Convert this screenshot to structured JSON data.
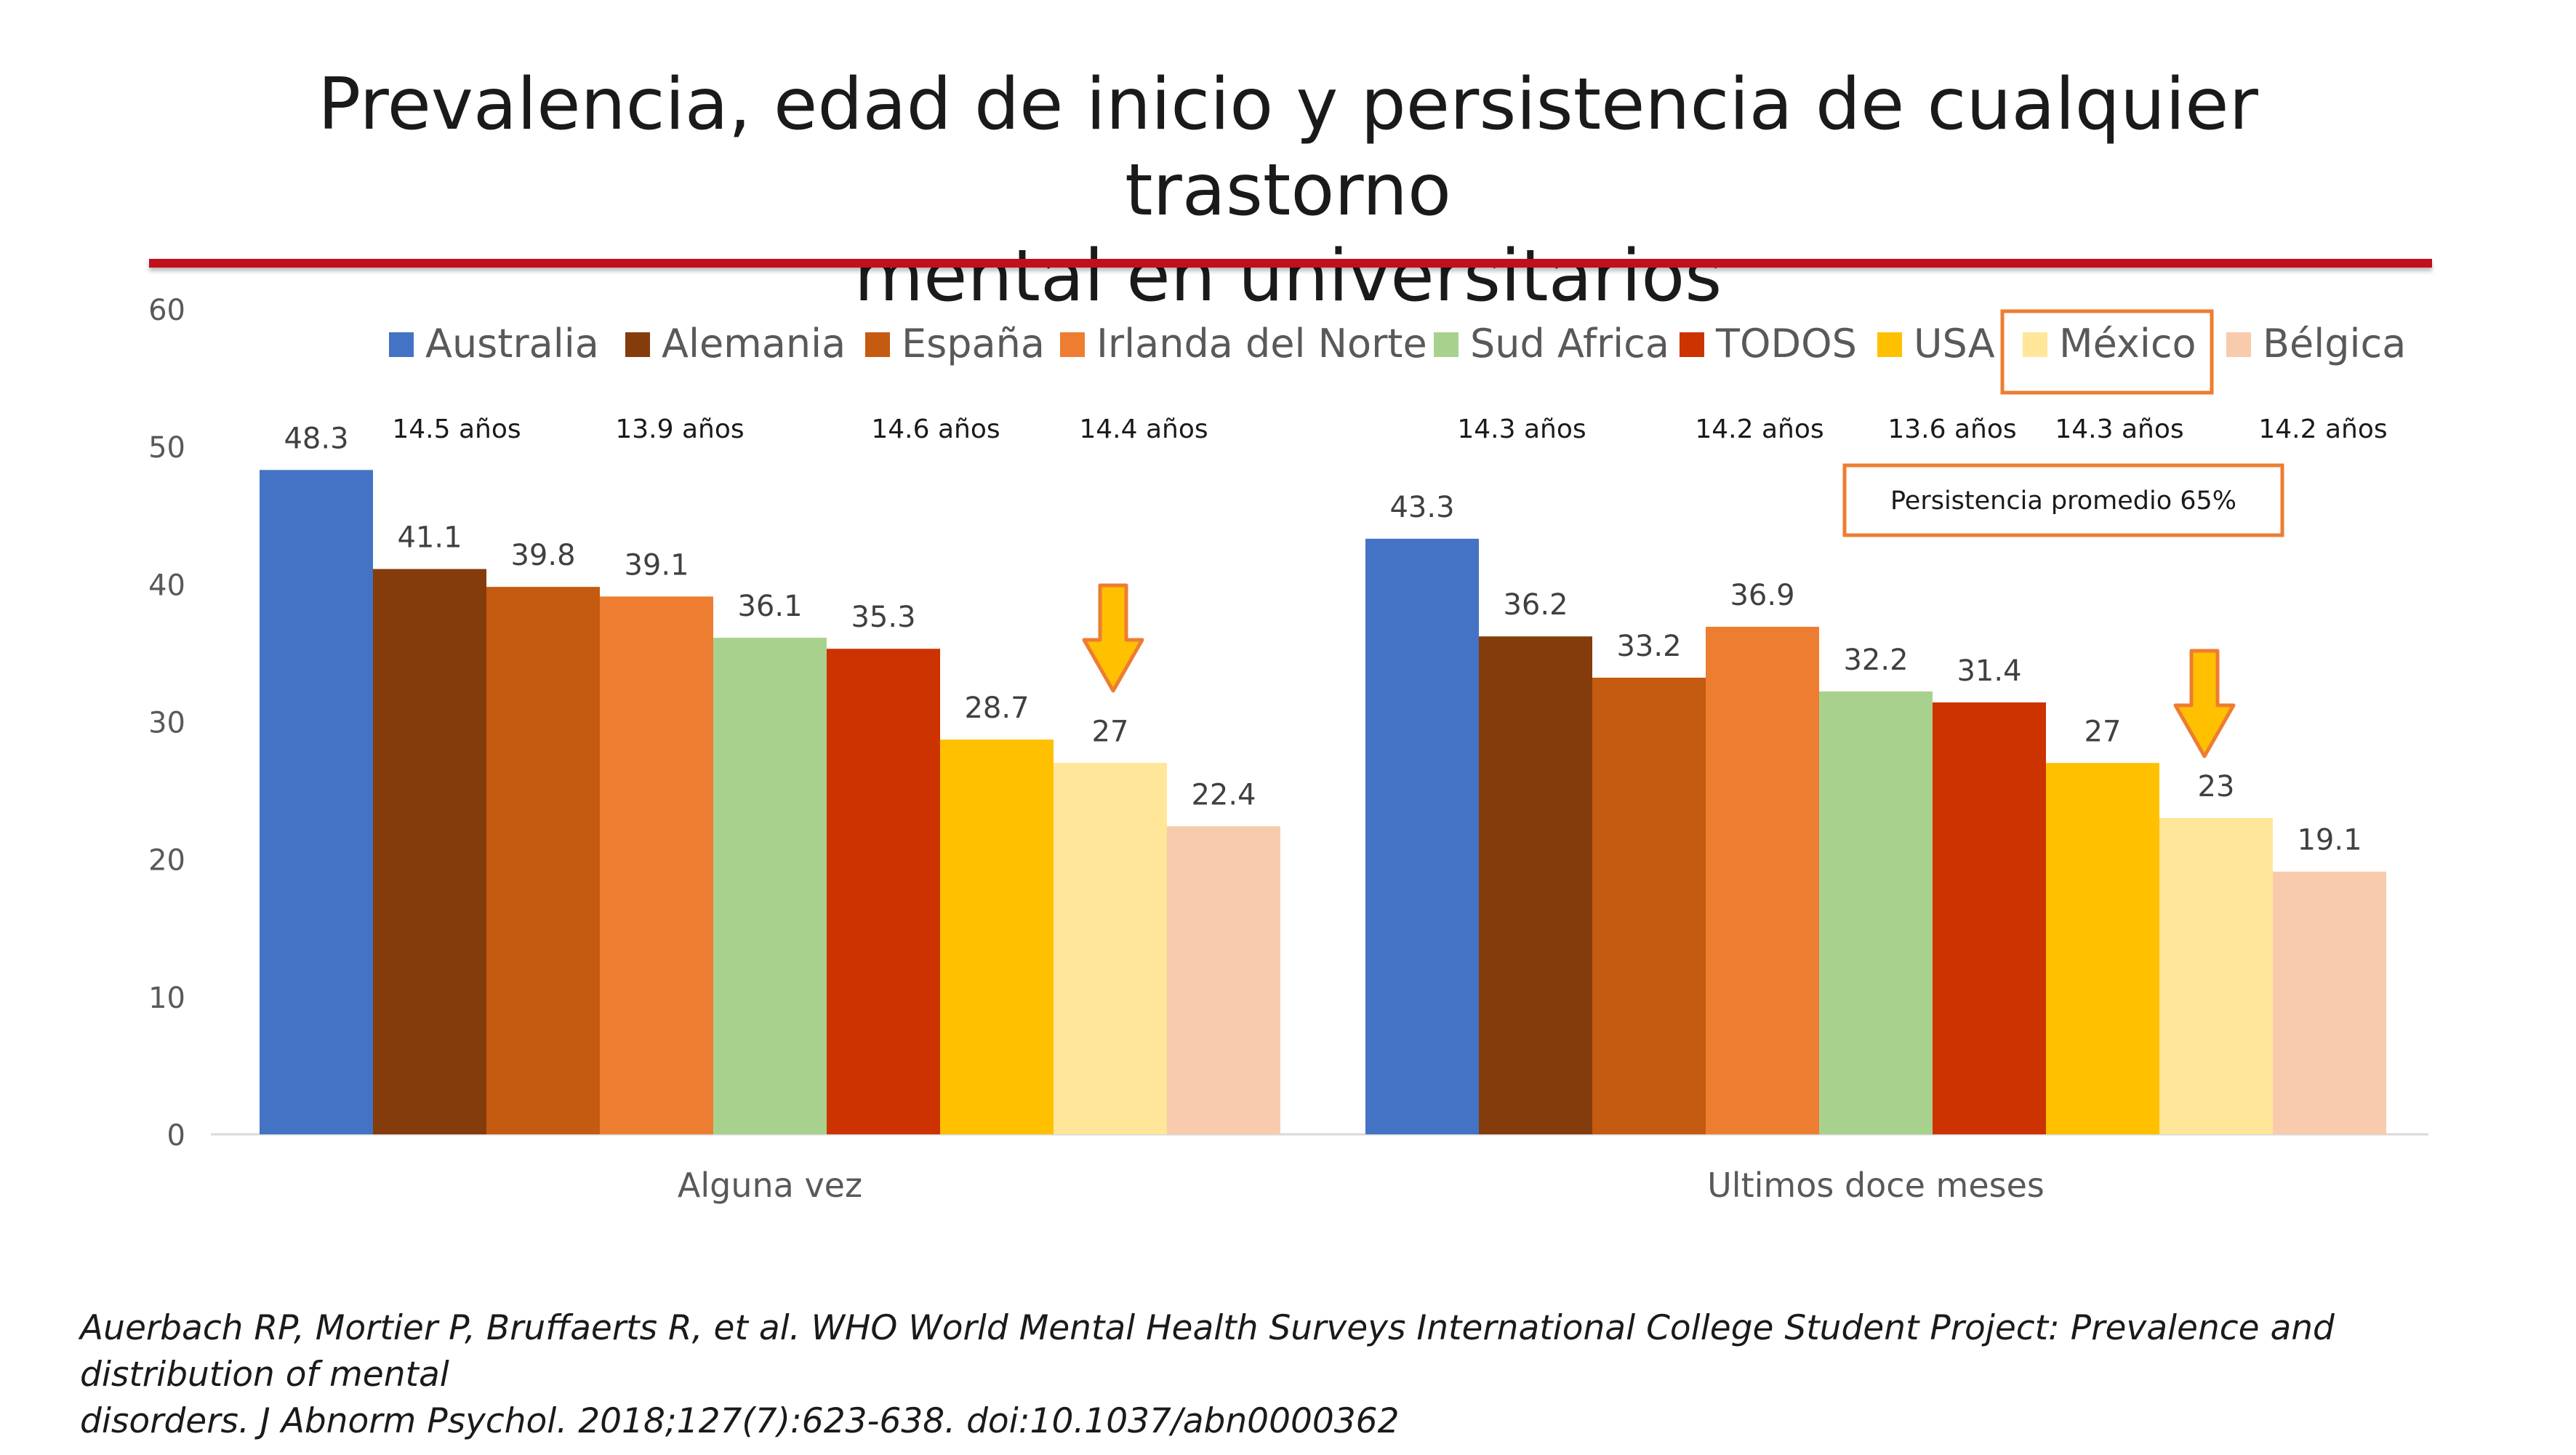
{
  "slide": {
    "title_line1": "Prevalencia, edad de inicio y persistencia de cualquier trastorno",
    "title_line2": "mental en universitarios",
    "citation_line1": "Auerbach RP, Mortier P, Bruffaerts R, et al. WHO World Mental Health Surveys International College Student Project: Prevalence and distribution of mental",
    "citation_line2": "disorders. J Abnorm Psychol. 2018;127(7):623-638. doi:10.1037/abn0000362",
    "accent_color": "#c0101c"
  },
  "chart_data": {
    "type": "bar",
    "title": "",
    "xlabel": "",
    "ylabel": "",
    "ylim": [
      0,
      60
    ],
    "yticks": [
      0,
      10,
      20,
      30,
      40,
      50,
      60
    ],
    "grid": false,
    "legend_position": "top",
    "categories": [
      "Alguna vez",
      "Ultimos doce meses"
    ],
    "series": [
      {
        "name": "Australia",
        "color": "#4472c4",
        "values": [
          48.3,
          43.3
        ]
      },
      {
        "name": "Alemania",
        "color": "#843c0c",
        "values": [
          41.1,
          36.2
        ]
      },
      {
        "name": "España",
        "color": "#c55a11",
        "values": [
          39.8,
          33.2
        ]
      },
      {
        "name": "Irlanda del Norte",
        "color": "#ed7d31",
        "values": [
          39.1,
          36.9
        ]
      },
      {
        "name": "Sud Africa",
        "color": "#a9d18e",
        "values": [
          36.1,
          32.2
        ]
      },
      {
        "name": "TODOS",
        "color": "#cc3300",
        "values": [
          35.3,
          31.4
        ]
      },
      {
        "name": "USA",
        "color": "#ffc000",
        "values": [
          28.7,
          27
        ]
      },
      {
        "name": "México",
        "color": "#ffe699",
        "values": [
          27,
          23
        ]
      },
      {
        "name": "Bélgica",
        "color": "#f8cbad",
        "values": [
          22.4,
          19.1
        ]
      }
    ],
    "highlighted_series": "México",
    "annotations": {
      "onset_ages": [
        "14.5 años",
        "13.9 años",
        "14.6 años",
        "14.4 años",
        "14.3 años",
        "14.2 años",
        "13.6 años",
        "14.3 años",
        "14.2 años"
      ],
      "persistence_note": "Persistencia promedio 65%",
      "arrow_color": "#ffc000",
      "arrow_outline": "#ed7d31"
    }
  }
}
